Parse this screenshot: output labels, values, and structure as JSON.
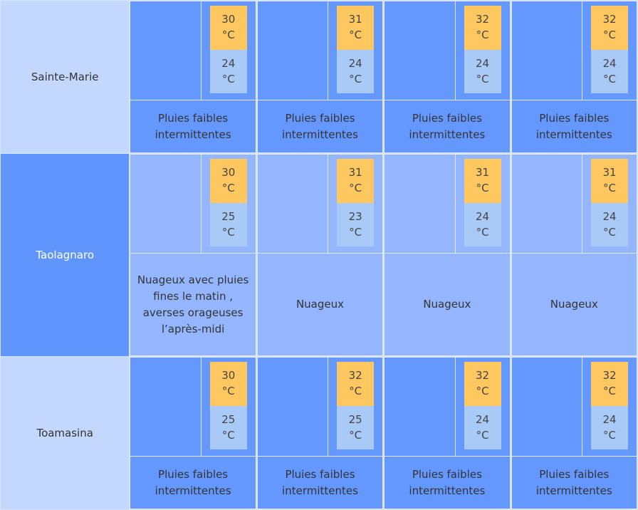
{
  "colors": {
    "city_light": "#c4d8fd",
    "city_dark": "#5f95fd",
    "cell_blue": "#5f95fd",
    "cell_light": "#93b6fe",
    "temp_max": "#ffc760",
    "temp_min": "#a9c9f7"
  },
  "rows": [
    {
      "city": "Sainte-Marie",
      "days": [
        {
          "max": "30",
          "min": "24",
          "unit": "°C",
          "icon": "rain-icon",
          "desc": "Pluies faibles intermittentes"
        },
        {
          "max": "31",
          "min": "24",
          "unit": "°C",
          "icon": "rain-icon",
          "desc": "Pluies faibles intermittentes"
        },
        {
          "max": "32",
          "min": "24",
          "unit": "°C",
          "icon": "rain-icon",
          "desc": "Pluies faibles intermittentes"
        },
        {
          "max": "32",
          "min": "24",
          "unit": "°C",
          "icon": "rain-icon",
          "desc": "Pluies faibles intermittentes"
        }
      ]
    },
    {
      "city": "Taolagnaro",
      "days": [
        {
          "max": "30",
          "min": "25",
          "unit": "°C",
          "icon": "storm-icon",
          "desc": "Nuageux avec pluies fines le matin , averses orageuses l’après-midi"
        },
        {
          "max": "31",
          "min": "23",
          "unit": "°C",
          "icon": "cloud-icon",
          "desc": "Nuageux"
        },
        {
          "max": "31",
          "min": "24",
          "unit": "°C",
          "icon": "cloud-icon",
          "desc": "Nuageux"
        },
        {
          "max": "31",
          "min": "24",
          "unit": "°C",
          "icon": "cloud-icon",
          "desc": "Nuageux"
        }
      ]
    },
    {
      "city": "Toamasina",
      "days": [
        {
          "max": "30",
          "min": "25",
          "unit": "°C",
          "icon": "rain-icon",
          "desc": "Pluies faibles intermittentes"
        },
        {
          "max": "32",
          "min": "25",
          "unit": "°C",
          "icon": "rain-icon",
          "desc": "Pluies faibles intermittentes"
        },
        {
          "max": "32",
          "min": "24",
          "unit": "°C",
          "icon": "rain-icon",
          "desc": "Pluies faibles intermittentes"
        },
        {
          "max": "32",
          "min": "24",
          "unit": "°C",
          "icon": "rain-icon",
          "desc": "Pluies faibles intermittentes"
        }
      ]
    }
  ]
}
